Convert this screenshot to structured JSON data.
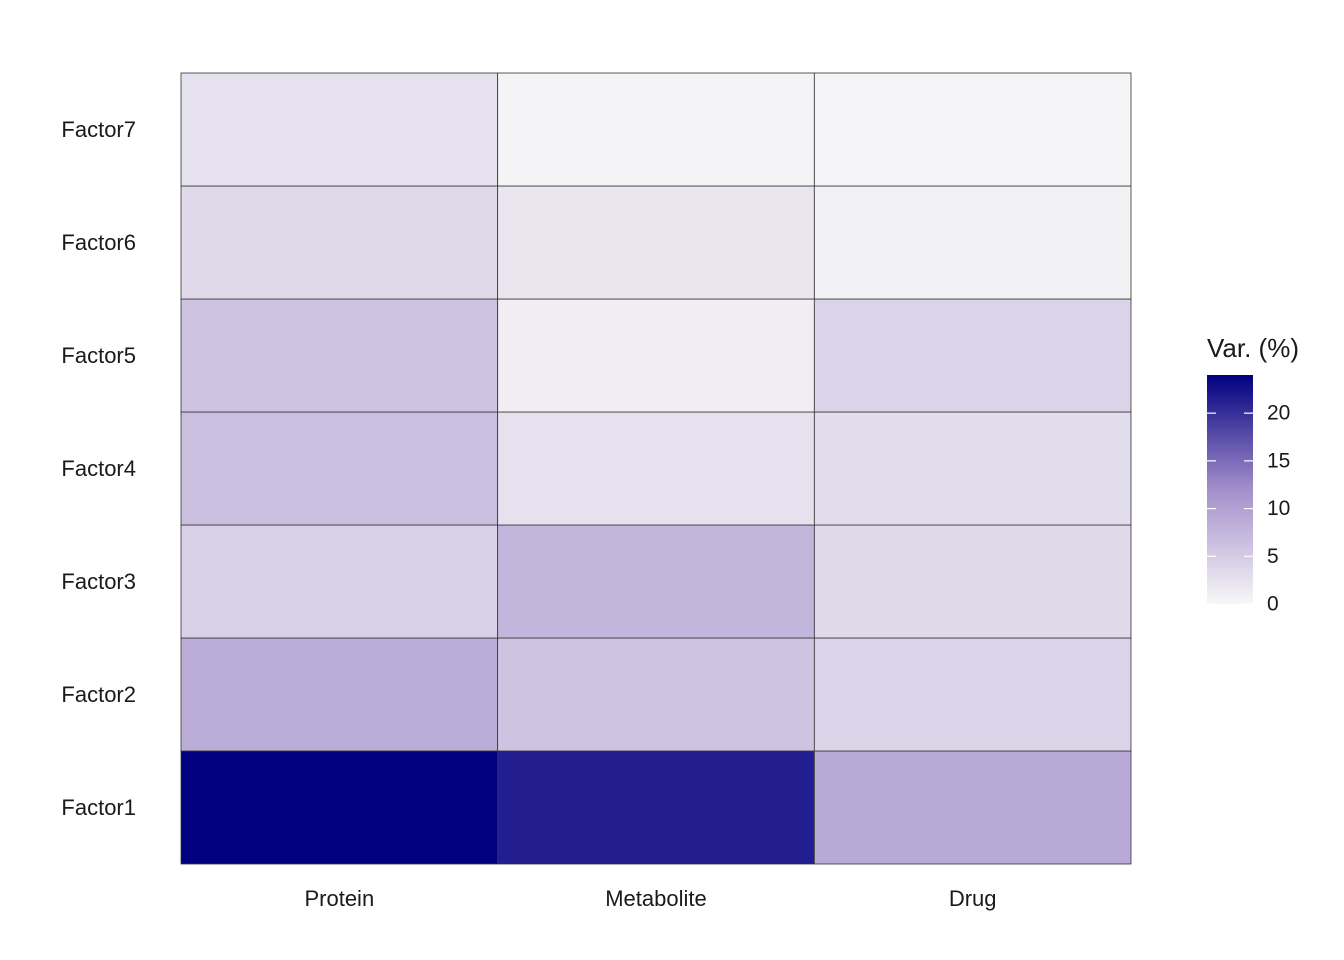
{
  "chart_data": {
    "type": "heatmap",
    "title": "",
    "xlabel": "",
    "ylabel": "",
    "x_categories": [
      "Protein",
      "Metabolite",
      "Drug"
    ],
    "y_categories": [
      "Factor1",
      "Factor2",
      "Factor3",
      "Factor4",
      "Factor5",
      "Factor6",
      "Factor7"
    ],
    "values": [
      [
        24.0,
        21.5,
        9.0
      ],
      [
        8.5,
        6.0,
        4.0
      ],
      [
        4.5,
        7.5,
        3.5
      ],
      [
        6.5,
        2.5,
        3.0
      ],
      [
        6.0,
        1.0,
        4.0
      ],
      [
        3.5,
        2.0,
        0.7
      ],
      [
        2.5,
        0.5,
        0.3
      ]
    ],
    "legend": {
      "title": "Var. (%)",
      "range": [
        0,
        24
      ],
      "ticks": [
        0,
        5,
        10,
        15,
        20
      ],
      "placement": "right"
    },
    "colors": {
      "low": "#f7f7f7",
      "mid": "#a48fcb",
      "high": "#000080",
      "cell_border": "#333333"
    }
  }
}
